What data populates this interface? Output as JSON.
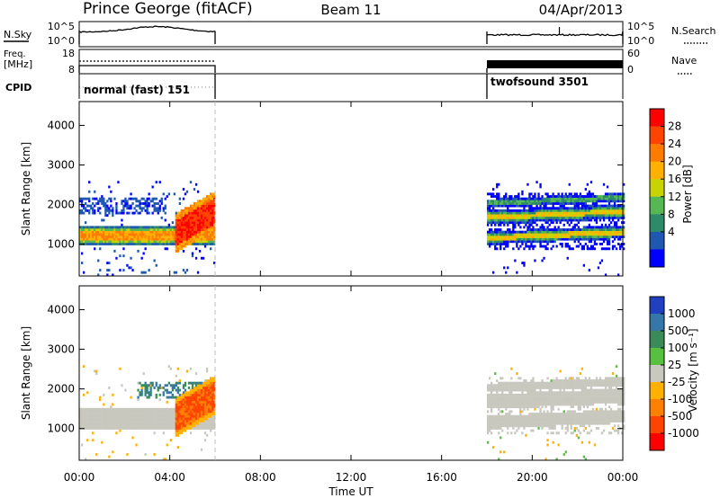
{
  "header": {
    "station": "Prince George (fitACF)",
    "beam": "Beam 11",
    "date": "04/Apr/2013"
  },
  "chart_data": {
    "type": "heatmap",
    "title": "Prince George (fitACF)",
    "subtitle": "Beam 11",
    "date": "04/Apr/2013",
    "xlabel": "Time UT",
    "x_ticks": [
      "00:00",
      "04:00",
      "08:00",
      "12:00",
      "16:00",
      "20:00",
      "00:00"
    ],
    "x_range_hours": [
      0,
      24
    ],
    "data_windows_hours": [
      [
        0,
        6
      ],
      [
        18,
        24
      ]
    ],
    "summary": {
      "nsky": {
        "label": "N.Sky",
        "ticks": [
          "10^5",
          "10^0"
        ],
        "right_ticks": [
          "10^5",
          "10^0"
        ],
        "right_label": "N.Search",
        "right_label_style": "dotted"
      },
      "freq": {
        "label": "Freq.",
        "unit_label": "[MHz]",
        "ticks": [
          "18",
          "8"
        ],
        "right_ticks": [
          "60",
          "0"
        ],
        "right_label": "Nave",
        "right_label_style": "dotted"
      },
      "cpid": {
        "label": "CPID",
        "segments": [
          {
            "name": "normal (fast) 151",
            "start_hour": 0,
            "end_hour": 6
          },
          {
            "name": "twofsound 3501",
            "start_hour": 18,
            "end_hour": 24
          }
        ]
      }
    },
    "panels": [
      {
        "name": "power",
        "ylabel": "Slant Range [km]",
        "ylim": [
          200,
          4600
        ],
        "yticks": [
          "4000",
          "3000",
          "2000",
          "1000"
        ],
        "colorbar_label": "Power [dB]",
        "colorbar_ticks": [
          "28",
          "24",
          "20",
          "16",
          "12",
          "8",
          "4"
        ],
        "colorbar_colors": [
          "#ff0000",
          "#ff4400",
          "#ff7b00",
          "#ffb000",
          "#c8d400",
          "#55b855",
          "#2e8b6a",
          "#1f58b0",
          "#0000ff"
        ]
      },
      {
        "name": "velocity",
        "ylabel": "Slant Range [km]",
        "ylim": [
          200,
          4600
        ],
        "yticks": [
          "4000",
          "3000",
          "2000",
          "1000"
        ],
        "colorbar_label": "Velocity [m s⁻¹]",
        "colorbar_ticks": [
          "1000",
          "500",
          "100",
          "25",
          "-25",
          "-100",
          "-500",
          "-1000"
        ],
        "colorbar_colors": [
          "#2040c0",
          "#3578a8",
          "#3a8a5a",
          "#58c040",
          "#c8c8bf",
          "#ffb000",
          "#ff8000",
          "#ff4400",
          "#ff0000"
        ]
      }
    ]
  }
}
